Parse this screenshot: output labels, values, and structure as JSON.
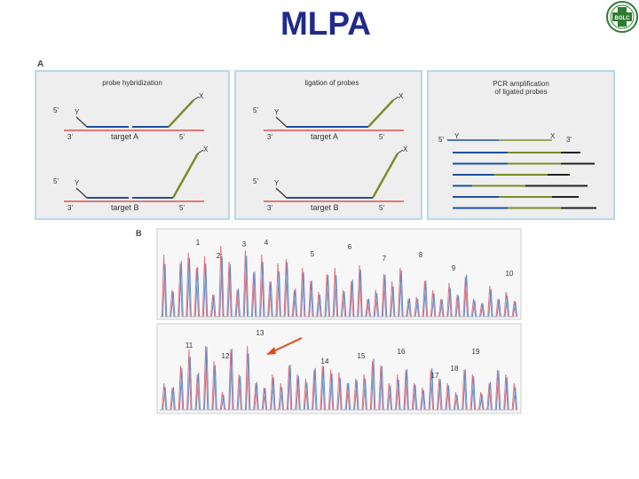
{
  "title": "MLPA",
  "logo": {
    "icon": "hospital-cross-logo-icon",
    "text": "BGLC",
    "color": "#2e7d32"
  },
  "colors": {
    "probe_blue": "#1f4fa0",
    "probe_green": "#7a8a2a",
    "target_red": "#d9534f",
    "peak_red": "#e8707a",
    "peak_blue": "#5a8fd0",
    "arrow": "#e04a1a"
  },
  "panel_a": {
    "letter": "A",
    "panels": [
      {
        "title": [
          "probe hybridization"
        ],
        "rows": [
          {
            "left5": "5'",
            "y": "Y",
            "x": "X",
            "left3": "3'",
            "target": "target A",
            "right5": "5'"
          },
          {
            "left5": "5'",
            "y": "Y",
            "x": "X",
            "left3": "3'",
            "target": "target B",
            "right5": "5'"
          }
        ]
      },
      {
        "title": [
          "ligation of probes"
        ],
        "rows": [
          {
            "left5": "5'",
            "y": "Y",
            "x": "X",
            "left3": "3'",
            "target": "target A",
            "right5": "5'"
          },
          {
            "left5": "5'",
            "y": "Y",
            "x": "X",
            "left3": "3'",
            "target": "target B",
            "right5": "5'"
          }
        ]
      },
      {
        "title": [
          "PCR amplification",
          "of ligated probes"
        ],
        "strand": {
          "left5": "5'",
          "y": "Y",
          "x": "X",
          "right3": "3'"
        }
      }
    ]
  },
  "panel_b": {
    "letter": "B",
    "top_labels": [
      "1",
      "2",
      "3",
      "4",
      "5",
      "6",
      "7",
      "8",
      "9",
      "10"
    ],
    "bottom_labels": [
      "11",
      "12",
      "13",
      "14",
      "15",
      "16",
      "17",
      "18",
      "19"
    ]
  }
}
